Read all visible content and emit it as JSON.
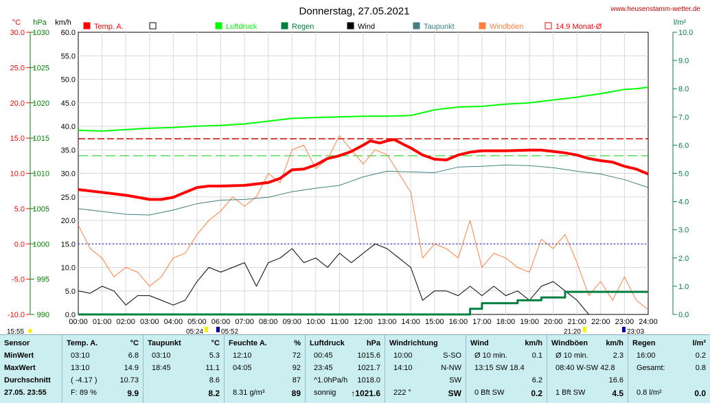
{
  "chart_data": {
    "type": "line",
    "title": "Donnerstag, 27.05.2021",
    "watermark": "www.heusenstamm-wetter.de",
    "axes": {
      "temp": {
        "unit": "°C",
        "min": -10,
        "max": 30,
        "ticks": [
          "30.0",
          "25.0",
          "20.0",
          "15.0",
          "10.0",
          "5.0",
          "0.0",
          "-5.0",
          "-10.0"
        ]
      },
      "pressure": {
        "unit": "hPa",
        "min": 990,
        "max": 1030,
        "ticks": [
          "1030",
          "1025",
          "1020",
          "1015",
          "1010",
          "1005",
          "1000",
          "995",
          "990"
        ]
      },
      "wind": {
        "unit": "km/h",
        "min": 0,
        "max": 60,
        "ticks": [
          "60.0",
          "55.0",
          "50.0",
          "45.0",
          "40.0",
          "35.0",
          "30.0",
          "25.0",
          "20.0",
          "15.0",
          "10.0",
          "5.0",
          "0.0"
        ]
      },
      "rain": {
        "unit": "l/m²",
        "min": 0,
        "max": 10,
        "ticks": [
          "10.0",
          "9.0",
          "8.0",
          "7.0",
          "6.0",
          "5.0",
          "4.0",
          "3.0",
          "2.0",
          "1.0",
          "0.0"
        ]
      },
      "x": {
        "ticks": [
          "00:00",
          "01:00",
          "02:00",
          "03:00",
          "04:00",
          "05:00",
          "06:00",
          "07:00",
          "08:00",
          "09:00",
          "10:00",
          "11:00",
          "12:00",
          "13:00",
          "14:00",
          "15:00",
          "16:00",
          "17:00",
          "18:00",
          "19:00",
          "20:00",
          "21:00",
          "22:00",
          "23:00",
          "24:00"
        ]
      }
    },
    "legend": [
      {
        "label": "Temp. A.",
        "color": "#ff0000",
        "style": "filled"
      },
      {
        "label": "",
        "color": "#000000",
        "style": "empty"
      },
      {
        "label": "Luftdruck",
        "color": "#00ff00",
        "style": "filled"
      },
      {
        "label": "Regen",
        "color": "#008040",
        "style": "filled"
      },
      {
        "label": "Wind",
        "color": "#000000",
        "style": "filled"
      },
      {
        "label": "Taupunkt",
        "color": "#408080",
        "style": "filled"
      },
      {
        "label": "Windböen",
        "color": "#ff8040",
        "style": "filled"
      },
      {
        "label": "14.9 Monat-Ø",
        "color": "#ff0000",
        "style": "empty"
      }
    ],
    "time_labels": {
      "left_time": "15:55",
      "sunrise": "05:24",
      "sunrise2": "05:52",
      "sunset": "21:20",
      "sunset2": "23:03"
    },
    "reference_lines": {
      "month_avg_temp": 14.9,
      "green_dash_temp": 12.5,
      "blue_dot_temp": 0.0
    },
    "series": [
      {
        "name": "Temp. A.",
        "axis": "temp",
        "color": "#ff0000",
        "x": [
          0,
          1,
          2,
          2.5,
          3,
          3.5,
          4,
          4.5,
          5,
          5.5,
          6,
          7,
          8,
          8.5,
          9,
          9.5,
          10,
          10.5,
          11,
          11.5,
          12,
          12.3,
          12.7,
          13,
          13.3,
          13.7,
          14,
          14.5,
          15,
          15.5,
          16,
          16.5,
          17,
          17.5,
          18,
          19,
          19.5,
          20,
          20.5,
          21,
          21.5,
          22,
          22.5,
          23,
          23.5,
          24
        ],
        "y": [
          7.7,
          7.3,
          6.9,
          6.6,
          6.3,
          6.3,
          6.6,
          7.3,
          8.0,
          8.2,
          8.2,
          8.3,
          8.7,
          9.3,
          10.5,
          10.6,
          11.2,
          12.1,
          12.5,
          13.1,
          14.0,
          14.6,
          14.3,
          14.6,
          14.8,
          14.1,
          13.6,
          12.6,
          12.0,
          11.9,
          12.6,
          13.0,
          13.2,
          13.2,
          13.2,
          13.3,
          13.3,
          13.1,
          12.9,
          12.6,
          12.1,
          11.8,
          11.6,
          11.0,
          10.6,
          9.9
        ]
      },
      {
        "name": "Taupunkt",
        "axis": "temp",
        "color": "#408080",
        "x": [
          0,
          1,
          2,
          3,
          4,
          5,
          6,
          7,
          8,
          9,
          10,
          11,
          12,
          13,
          14,
          15,
          16,
          17,
          18,
          19,
          20,
          21,
          22,
          23,
          24
        ],
        "y": [
          5.0,
          4.6,
          4.2,
          4.1,
          4.8,
          5.7,
          6.2,
          6.3,
          6.6,
          7.4,
          7.9,
          8.3,
          9.5,
          10.3,
          10.2,
          10.1,
          10.9,
          11.0,
          11.2,
          11.1,
          10.8,
          10.3,
          9.9,
          9.1,
          8.0
        ]
      },
      {
        "name": "Luftdruck",
        "axis": "pressure",
        "color": "#00ff00",
        "x": [
          0,
          1,
          2,
          3,
          4,
          5,
          6,
          7,
          8,
          9,
          10,
          11,
          12,
          13,
          14,
          15,
          16,
          17,
          18,
          19,
          20,
          21,
          22,
          23,
          23.5,
          24
        ],
        "y": [
          1016.1,
          1016.0,
          1016.2,
          1016.4,
          1016.5,
          1016.7,
          1016.8,
          1017.0,
          1017.4,
          1017.8,
          1017.9,
          1018.0,
          1018.1,
          1018.1,
          1018.2,
          1019.0,
          1019.4,
          1019.5,
          1019.8,
          1020.0,
          1020.4,
          1020.8,
          1021.3,
          1021.9,
          1022.0,
          1022.2
        ]
      },
      {
        "name": "Wind",
        "axis": "wind",
        "color": "#000000",
        "x": [
          0,
          0.5,
          1,
          1.5,
          2,
          2.5,
          3,
          3.5,
          4,
          4.5,
          5,
          5.5,
          6,
          6.5,
          7,
          7.5,
          8,
          8.5,
          9,
          9.5,
          10,
          10.5,
          11,
          11.5,
          12,
          12.5,
          13,
          13.5,
          14,
          14.5,
          15,
          15.5,
          16,
          16.5,
          17,
          17.5,
          18,
          18.5,
          19,
          19.5,
          20,
          20.5,
          21,
          21.5,
          22,
          22.5,
          23,
          23.5,
          24
        ],
        "y": [
          5,
          4.5,
          6,
          5,
          2,
          4,
          4,
          3,
          2,
          3,
          7,
          10,
          9,
          10,
          11,
          6,
          11,
          12,
          14,
          11,
          12,
          10,
          13,
          11,
          13,
          15,
          14,
          12,
          10,
          3,
          5,
          5,
          4,
          6,
          4,
          6,
          4,
          5,
          3,
          6,
          7,
          5,
          3,
          0,
          0,
          0,
          0,
          0,
          0
        ]
      },
      {
        "name": "Windböen",
        "axis": "wind",
        "color": "#ff8040",
        "x": [
          0,
          0.5,
          1,
          1.5,
          2,
          2.5,
          3,
          3.5,
          4,
          4.5,
          5,
          5.5,
          6,
          6.5,
          7,
          7.5,
          8,
          8.5,
          9,
          9.5,
          10,
          10.5,
          11,
          11.5,
          12,
          12.5,
          13,
          13.5,
          14,
          14.5,
          15,
          15.5,
          16,
          16.5,
          17,
          17.5,
          18,
          18.5,
          19,
          19.5,
          20,
          20.5,
          21,
          21.5,
          22,
          22.5,
          23,
          23.5,
          24
        ],
        "y": [
          19,
          14,
          12,
          8,
          10,
          9,
          6,
          8,
          12,
          13,
          17,
          20,
          22,
          25,
          23,
          25,
          30,
          28,
          35,
          36,
          31,
          33,
          38,
          35,
          32,
          35,
          34,
          30,
          26,
          12,
          15,
          14,
          12,
          20,
          10,
          13,
          12,
          10,
          9,
          16,
          14,
          17,
          11,
          4,
          7,
          3,
          8,
          3,
          1
        ]
      },
      {
        "name": "Regen",
        "axis": "rain",
        "color": "#008040",
        "x": [
          0,
          16,
          16.5,
          17,
          18,
          18.5,
          19,
          19.5,
          20,
          20.5,
          21,
          22,
          23,
          24
        ],
        "y": [
          0,
          0,
          0.2,
          0.4,
          0.4,
          0.5,
          0.5,
          0.6,
          0.6,
          0.8,
          0.8,
          0.8,
          0.8,
          0.8
        ]
      }
    ]
  },
  "table": {
    "row_labels": [
      "Sensor",
      "MinWert",
      "MaxWert",
      "Durchschnitt",
      "27.05. 23:55"
    ],
    "columns": [
      {
        "title": "Temp. A.",
        "unit": "°C",
        "rows": [
          [
            "03:10",
            "6.8"
          ],
          [
            "13:10",
            "14.9"
          ],
          [
            "( -4.17 )",
            "10.73"
          ],
          [
            "F: 89 %",
            "9.9"
          ]
        ]
      },
      {
        "title": "Taupunkt",
        "unit": "°C",
        "rows": [
          [
            "03:10",
            "5.3"
          ],
          [
            "18:45",
            "11.1"
          ],
          [
            "",
            "8.6"
          ],
          [
            "",
            "8.2"
          ]
        ]
      },
      {
        "title": "Feuchte A.",
        "unit": "%",
        "rows": [
          [
            "12:10",
            "72"
          ],
          [
            "04:05",
            "92"
          ],
          [
            "",
            "87"
          ],
          [
            "8.31 g/m³",
            "89"
          ]
        ]
      },
      {
        "title": "Luftdruck",
        "unit": "hPa",
        "rows": [
          [
            "00:45",
            "1015.6"
          ],
          [
            "23:45",
            "1021.7"
          ],
          [
            "^1.0hPa/h",
            "1018.0"
          ],
          [
            "sonnig",
            "↑1021.6"
          ]
        ]
      },
      {
        "title": "Windrichtung",
        "unit": "",
        "rows": [
          [
            "10:00",
            "S-SO"
          ],
          [
            "14:10",
            "N-NW"
          ],
          [
            "",
            "SW"
          ],
          [
            "222 °",
            "SW"
          ]
        ]
      },
      {
        "title": "Wind",
        "unit": "km/h",
        "rows": [
          [
            "Ø 10 min.",
            "0.1"
          ],
          [
            "13:15   SW 18.4",
            ""
          ],
          [
            "",
            "6.2"
          ],
          [
            "0 Bft SW",
            "0.2"
          ]
        ]
      },
      {
        "title": "Windböen",
        "unit": "km/h",
        "rows": [
          [
            "Ø 10 min.",
            "2.3"
          ],
          [
            "08:40   W-SW 42.8",
            ""
          ],
          [
            "",
            "16.6"
          ],
          [
            "1 Bft SW",
            "4.5"
          ]
        ]
      },
      {
        "title": "Regen",
        "unit": "l/m²",
        "rows": [
          [
            "16:00",
            "0.2"
          ],
          [
            "Gesamt:",
            "0.8"
          ],
          [
            "",
            ""
          ],
          [
            "0.8 l/m²",
            "0.0"
          ]
        ]
      }
    ]
  }
}
